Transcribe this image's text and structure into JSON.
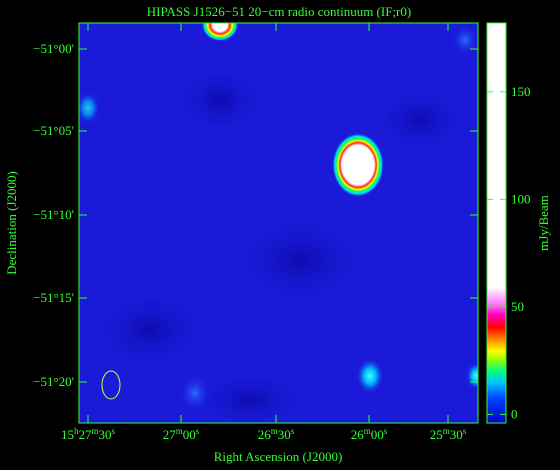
{
  "figure": {
    "title": "HIPASS J1526−51   20−cm radio continuum (IF;r0)",
    "xlabel": "Right Ascension (J2000)",
    "ylabel": "Declination (J2000)",
    "xticks": [
      [
        "15",
        "h",
        "27",
        "m",
        "30",
        "s"
      ],
      [
        "27",
        "m",
        "00",
        "s"
      ],
      [
        "26",
        "m",
        "30",
        "s"
      ],
      [
        "26",
        "m",
        "00",
        "s"
      ],
      [
        "25",
        "m",
        "30",
        "s"
      ]
    ],
    "yticks": [
      "−51°00'",
      "−51°05'",
      "−51°10'",
      "−51°15'",
      "−51°20'"
    ],
    "colorbar": {
      "label": "mJy/Beam",
      "lim": [
        -4,
        182
      ],
      "ticks": [
        0,
        50,
        100,
        150
      ]
    }
  }
}
